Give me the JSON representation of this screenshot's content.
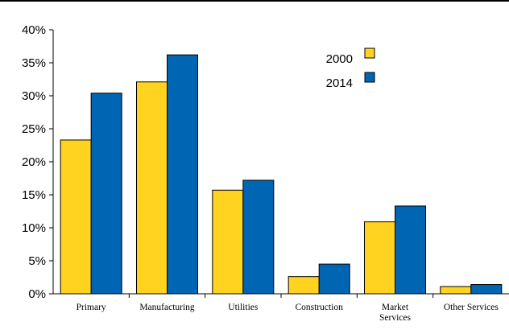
{
  "chart_data": {
    "type": "bar",
    "title": "",
    "xlabel": "",
    "ylabel": "",
    "categories": [
      [
        "Primary"
      ],
      [
        "Manufacturing"
      ],
      [
        "Utilities"
      ],
      [
        "Construction"
      ],
      [
        "Market",
        "Services"
      ],
      [
        "Other Services"
      ]
    ],
    "series": [
      {
        "name": "2000",
        "color": "#FFD320",
        "values": [
          23.3,
          32.1,
          15.7,
          2.6,
          10.9,
          1.1
        ]
      },
      {
        "name": "2014",
        "color": "#0066B3",
        "values": [
          30.4,
          36.2,
          17.2,
          4.5,
          13.3,
          1.4
        ]
      }
    ],
    "ylim": [
      0,
      40
    ],
    "yticks": [
      0,
      5,
      10,
      15,
      20,
      25,
      30,
      35,
      40
    ],
    "ytick_labels": [
      "0%",
      "5%",
      "10%",
      "15%",
      "20%",
      "25%",
      "30%",
      "35%",
      "40%"
    ],
    "grid": false,
    "legend_position": "top-right"
  }
}
